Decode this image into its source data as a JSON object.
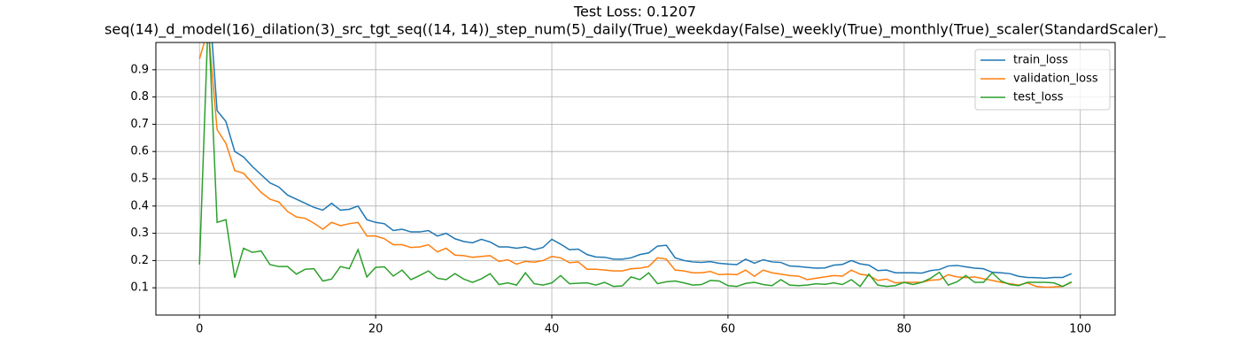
{
  "chart_data": {
    "type": "line",
    "title": "Test Loss: 0.1207",
    "subtitle": "seq(14)_d_model(16)_dilation(3)_src_tgt_seq((14, 14))_step_num(5)_daily(True)_weekday(False)_weekly(True)_monthly(True)_scaler(StandardScaler)_",
    "x": [
      0,
      1,
      2,
      3,
      4,
      5,
      6,
      7,
      8,
      9,
      10,
      11,
      12,
      13,
      14,
      15,
      16,
      17,
      18,
      19,
      20,
      21,
      22,
      23,
      24,
      25,
      26,
      27,
      28,
      29,
      30,
      31,
      32,
      33,
      34,
      35,
      36,
      37,
      38,
      39,
      40,
      41,
      42,
      43,
      44,
      45,
      46,
      47,
      48,
      49,
      50,
      51,
      52,
      53,
      54,
      55,
      56,
      57,
      58,
      59,
      60,
      61,
      62,
      63,
      64,
      65,
      66,
      67,
      68,
      69,
      70,
      71,
      72,
      73,
      74,
      75,
      76,
      77,
      78,
      79,
      80,
      81,
      82,
      83,
      84,
      85,
      86,
      87,
      88,
      89,
      90,
      91,
      92,
      93,
      94,
      95,
      96,
      97,
      98,
      99
    ],
    "series": [
      {
        "name": "train_loss",
        "color": "#1f77b4",
        "values": [
          1.05,
          1.2,
          0.75,
          0.71,
          0.6,
          0.58,
          0.545,
          0.515,
          0.485,
          0.47,
          0.44,
          0.425,
          0.41,
          0.395,
          0.385,
          0.41,
          0.385,
          0.388,
          0.4,
          0.35,
          0.34,
          0.335,
          0.31,
          0.315,
          0.305,
          0.305,
          0.31,
          0.29,
          0.3,
          0.28,
          0.27,
          0.265,
          0.278,
          0.268,
          0.25,
          0.25,
          0.245,
          0.25,
          0.24,
          0.248,
          0.278,
          0.26,
          0.24,
          0.242,
          0.222,
          0.213,
          0.212,
          0.205,
          0.205,
          0.21,
          0.222,
          0.228,
          0.253,
          0.256,
          0.21,
          0.2,
          0.195,
          0.193,
          0.196,
          0.19,
          0.187,
          0.185,
          0.205,
          0.19,
          0.203,
          0.195,
          0.193,
          0.18,
          0.178,
          0.175,
          0.172,
          0.173,
          0.183,
          0.186,
          0.2,
          0.188,
          0.183,
          0.163,
          0.165,
          0.155,
          0.155,
          0.155,
          0.154,
          0.163,
          0.167,
          0.18,
          0.182,
          0.177,
          0.172,
          0.17,
          0.157,
          0.155,
          0.152,
          0.142,
          0.138,
          0.137,
          0.135,
          0.138,
          0.138,
          0.152
        ]
      },
      {
        "name": "validation_loss",
        "color": "#ff7f0e",
        "values": [
          0.94,
          1.05,
          0.68,
          0.63,
          0.53,
          0.52,
          0.485,
          0.45,
          0.425,
          0.415,
          0.38,
          0.36,
          0.355,
          0.337,
          0.315,
          0.34,
          0.328,
          0.335,
          0.34,
          0.29,
          0.29,
          0.28,
          0.258,
          0.258,
          0.248,
          0.25,
          0.258,
          0.232,
          0.245,
          0.22,
          0.218,
          0.212,
          0.215,
          0.218,
          0.197,
          0.203,
          0.187,
          0.197,
          0.194,
          0.2,
          0.215,
          0.21,
          0.192,
          0.195,
          0.168,
          0.168,
          0.165,
          0.162,
          0.162,
          0.17,
          0.172,
          0.178,
          0.21,
          0.205,
          0.165,
          0.162,
          0.155,
          0.155,
          0.16,
          0.148,
          0.15,
          0.148,
          0.165,
          0.142,
          0.165,
          0.155,
          0.15,
          0.145,
          0.143,
          0.13,
          0.135,
          0.14,
          0.145,
          0.143,
          0.165,
          0.15,
          0.145,
          0.127,
          0.132,
          0.118,
          0.12,
          0.12,
          0.12,
          0.128,
          0.13,
          0.148,
          0.14,
          0.137,
          0.14,
          0.133,
          0.127,
          0.12,
          0.115,
          0.11,
          0.118,
          0.105,
          0.102,
          0.103,
          0.105,
          0.12
        ]
      },
      {
        "name": "test_loss",
        "color": "#2ca02c",
        "values": [
          0.185,
          1.1,
          0.34,
          0.35,
          0.137,
          0.245,
          0.23,
          0.235,
          0.185,
          0.178,
          0.178,
          0.15,
          0.168,
          0.17,
          0.125,
          0.132,
          0.178,
          0.17,
          0.24,
          0.14,
          0.175,
          0.177,
          0.143,
          0.165,
          0.13,
          0.145,
          0.162,
          0.135,
          0.13,
          0.152,
          0.132,
          0.12,
          0.133,
          0.152,
          0.112,
          0.118,
          0.11,
          0.155,
          0.115,
          0.11,
          0.118,
          0.145,
          0.115,
          0.117,
          0.118,
          0.11,
          0.12,
          0.105,
          0.107,
          0.14,
          0.13,
          0.155,
          0.115,
          0.122,
          0.125,
          0.118,
          0.11,
          0.112,
          0.127,
          0.125,
          0.108,
          0.105,
          0.116,
          0.12,
          0.112,
          0.108,
          0.13,
          0.11,
          0.108,
          0.11,
          0.115,
          0.113,
          0.118,
          0.112,
          0.13,
          0.105,
          0.15,
          0.11,
          0.105,
          0.108,
          0.12,
          0.112,
          0.12,
          0.135,
          0.157,
          0.11,
          0.122,
          0.145,
          0.12,
          0.12,
          0.155,
          0.125,
          0.112,
          0.108,
          0.12,
          0.12,
          0.12,
          0.118,
          0.105,
          0.122
        ]
      }
    ],
    "xlim": [
      -4.95,
      103.95
    ],
    "xticks": [
      0,
      20,
      40,
      60,
      80,
      100
    ],
    "ylim": [
      0,
      1.0
    ],
    "yticks": [
      0.1,
      0.2,
      0.3,
      0.4,
      0.5,
      0.6,
      0.7,
      0.8,
      0.9
    ],
    "grid": true,
    "legend": "upper-right"
  }
}
